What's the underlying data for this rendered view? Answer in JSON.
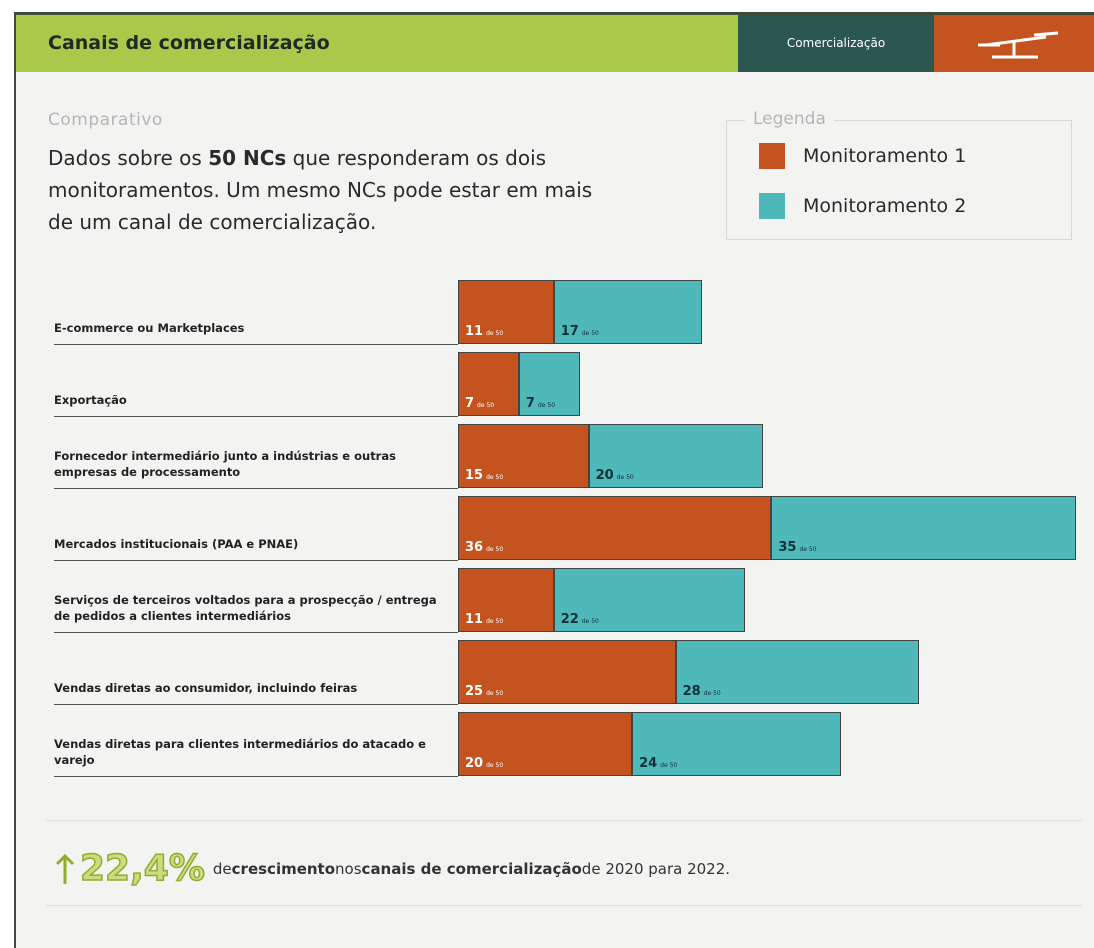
{
  "header": {
    "title": "Canais de comercialização",
    "tab": "Comercialização"
  },
  "chart_data": {
    "type": "bar",
    "orientation": "horizontal",
    "stacked": true,
    "subtitle": "Comparativo",
    "description": {
      "before": "Dados sobre os",
      "bold": "50 NCs",
      "after": "que responderam os dois monitoramentos. Um mesmo NCs pode estar em mais de um canal de comercialização."
    },
    "legend_title": "Legenda",
    "categories": [
      "E-commerce ou Marketplaces",
      "Exportação",
      "Fornecedor intermediário junto a indústrias e outras empresas de processamento",
      "Mercados institucionais (PAA e PNAE)",
      "Serviços de terceiros voltados para a prospecção / entrega de pedidos a clientes intermediários",
      "Vendas diretas ao consumidor, incluindo feiras",
      "Vendas diretas para clientes intermediários do atacado e varejo"
    ],
    "series": [
      {
        "name": "Monitoramento 1",
        "color": "#c4531f",
        "label_color": "#ffffff",
        "values": [
          11,
          7,
          15,
          36,
          11,
          25,
          20
        ]
      },
      {
        "name": "Monitoramento 2",
        "color": "#4fb8b8",
        "label_color": "#14303a",
        "values": [
          17,
          7,
          20,
          35,
          22,
          28,
          24
        ]
      }
    ],
    "value_suffix": "de 50"
  },
  "footer": {
    "highlight": "22,4%",
    "parts": [
      "de",
      "crescimento",
      "nos",
      "canais de comercialização",
      "de 2020 para 2022."
    ]
  }
}
